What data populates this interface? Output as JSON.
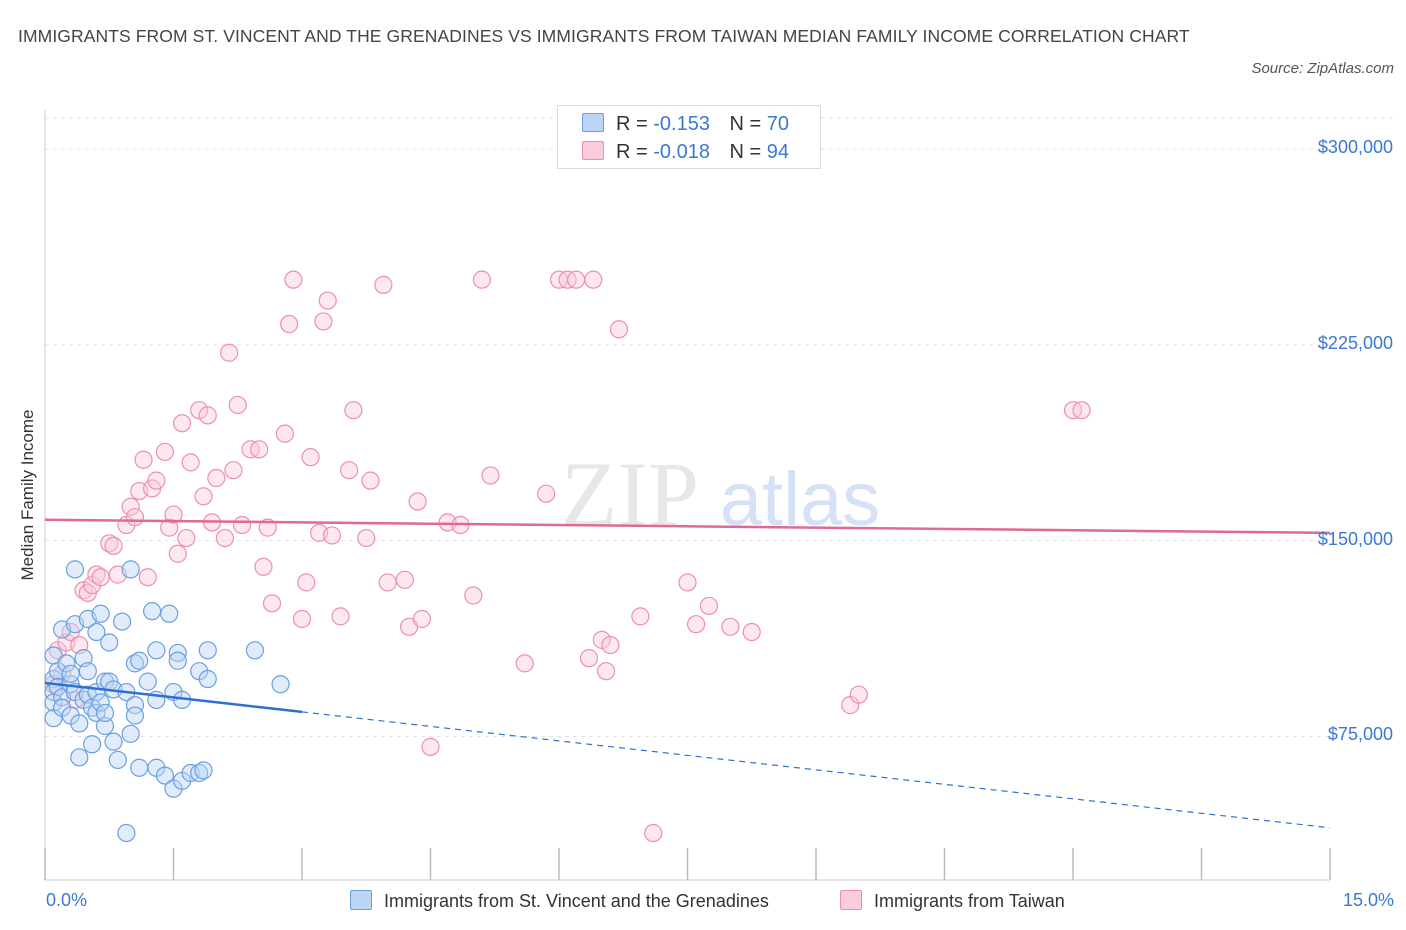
{
  "title": "IMMIGRANTS FROM ST. VINCENT AND THE GRENADINES VS IMMIGRANTS FROM TAIWAN MEDIAN FAMILY INCOME CORRELATION CHART",
  "source": "Source: ZipAtlas.com",
  "watermark": {
    "zip": "ZIP",
    "atlas": "atlas"
  },
  "legend": {
    "rows": [
      {
        "r_label": "R =",
        "r_value": "-0.153",
        "n_label": "N =",
        "n_value": "70"
      },
      {
        "r_label": "R =",
        "r_value": "-0.018",
        "n_label": "N =",
        "n_value": "94"
      }
    ]
  },
  "chart_data": {
    "type": "scatter",
    "title": "IMMIGRANTS FROM ST. VINCENT AND THE GRENADINES VS IMMIGRANTS FROM TAIWAN MEDIAN FAMILY INCOME CORRELATION CHART",
    "xlabel": "",
    "ylabel": "Median Family Income",
    "xlim": [
      0,
      15
    ],
    "ylim": [
      20000,
      315000
    ],
    "x_tick_labels": [
      "0.0%",
      "15.0%"
    ],
    "y_ticks": [
      75000,
      150000,
      225000,
      300000
    ],
    "y_tick_labels": [
      "$75,000",
      "$150,000",
      "$225,000",
      "$300,000"
    ],
    "grid": true,
    "legend_position": "top-center",
    "colors": {
      "blue": "#6a9fe0",
      "blue_fill": "#bcd4f6",
      "blue_line": "#2f6fd0",
      "pink": "#ee8fac",
      "pink_fill": "#f9cdda",
      "pink_line": "#e06a93"
    },
    "series": [
      {
        "name": "Immigrants from St. Vincent and the Grenadines",
        "color": "#6a9fe0",
        "points": [
          [
            0.1,
            106000
          ],
          [
            0.1,
            97000
          ],
          [
            0.1,
            92000
          ],
          [
            0.1,
            88000
          ],
          [
            0.1,
            82000
          ],
          [
            0.15,
            100000
          ],
          [
            0.15,
            94000
          ],
          [
            0.2,
            116000
          ],
          [
            0.2,
            90000
          ],
          [
            0.2,
            86000
          ],
          [
            0.25,
            103000
          ],
          [
            0.3,
            95000
          ],
          [
            0.3,
            99000
          ],
          [
            0.3,
            83000
          ],
          [
            0.35,
            139000
          ],
          [
            0.35,
            118000
          ],
          [
            0.35,
            92000
          ],
          [
            0.4,
            80000
          ],
          [
            0.4,
            67000
          ],
          [
            0.45,
            105000
          ],
          [
            0.45,
            89000
          ],
          [
            0.5,
            120000
          ],
          [
            0.5,
            100000
          ],
          [
            0.5,
            91000
          ],
          [
            0.55,
            86000
          ],
          [
            0.55,
            72000
          ],
          [
            0.6,
            115000
          ],
          [
            0.6,
            92000
          ],
          [
            0.6,
            84000
          ],
          [
            0.65,
            122000
          ],
          [
            0.65,
            88000
          ],
          [
            0.7,
            79000
          ],
          [
            0.7,
            84000
          ],
          [
            0.7,
            96000
          ],
          [
            0.75,
            111000
          ],
          [
            0.75,
            96000
          ],
          [
            0.8,
            93000
          ],
          [
            0.8,
            73000
          ],
          [
            0.85,
            66000
          ],
          [
            0.9,
            119000
          ],
          [
            0.95,
            38000
          ],
          [
            0.95,
            92000
          ],
          [
            1.0,
            139000
          ],
          [
            1.0,
            76000
          ],
          [
            1.05,
            103000
          ],
          [
            1.05,
            87000
          ],
          [
            1.05,
            83000
          ],
          [
            1.1,
            63000
          ],
          [
            1.1,
            104000
          ],
          [
            1.2,
            96000
          ],
          [
            1.25,
            123000
          ],
          [
            1.3,
            108000
          ],
          [
            1.3,
            63000
          ],
          [
            1.3,
            89000
          ],
          [
            1.4,
            60000
          ],
          [
            1.45,
            122000
          ],
          [
            1.5,
            55000
          ],
          [
            1.5,
            92000
          ],
          [
            1.55,
            107000
          ],
          [
            1.55,
            104000
          ],
          [
            1.6,
            89000
          ],
          [
            1.6,
            58000
          ],
          [
            1.7,
            61000
          ],
          [
            1.8,
            61000
          ],
          [
            1.8,
            100000
          ],
          [
            1.85,
            62000
          ],
          [
            1.9,
            108000
          ],
          [
            1.9,
            97000
          ],
          [
            2.45,
            108000
          ],
          [
            2.75,
            95000
          ]
        ]
      },
      {
        "name": "Immigrants from Taiwan",
        "color": "#ee8fac",
        "points": [
          [
            0.1,
            95000
          ],
          [
            0.15,
            108000
          ],
          [
            0.2,
            99000
          ],
          [
            0.25,
            111000
          ],
          [
            0.3,
            115000
          ],
          [
            0.35,
            89000
          ],
          [
            0.4,
            110000
          ],
          [
            0.45,
            131000
          ],
          [
            0.5,
            130000
          ],
          [
            0.55,
            133000
          ],
          [
            0.6,
            137000
          ],
          [
            0.65,
            136000
          ],
          [
            0.75,
            149000
          ],
          [
            0.8,
            148000
          ],
          [
            0.85,
            137000
          ],
          [
            0.95,
            156000
          ],
          [
            1.0,
            163000
          ],
          [
            1.05,
            159000
          ],
          [
            1.1,
            169000
          ],
          [
            1.15,
            181000
          ],
          [
            1.2,
            136000
          ],
          [
            1.25,
            170000
          ],
          [
            1.3,
            173000
          ],
          [
            1.4,
            184000
          ],
          [
            1.45,
            155000
          ],
          [
            1.5,
            160000
          ],
          [
            1.55,
            145000
          ],
          [
            1.6,
            195000
          ],
          [
            1.65,
            151000
          ],
          [
            1.7,
            180000
          ],
          [
            1.8,
            200000
          ],
          [
            1.85,
            167000
          ],
          [
            1.9,
            198000
          ],
          [
            1.95,
            157000
          ],
          [
            2.0,
            174000
          ],
          [
            2.1,
            151000
          ],
          [
            2.15,
            222000
          ],
          [
            2.2,
            177000
          ],
          [
            2.25,
            202000
          ],
          [
            2.3,
            156000
          ],
          [
            2.4,
            185000
          ],
          [
            2.5,
            185000
          ],
          [
            2.55,
            140000
          ],
          [
            2.6,
            155000
          ],
          [
            2.65,
            126000
          ],
          [
            2.8,
            191000
          ],
          [
            2.85,
            233000
          ],
          [
            2.9,
            250000
          ],
          [
            3.0,
            120000
          ],
          [
            3.05,
            134000
          ],
          [
            3.1,
            182000
          ],
          [
            3.2,
            153000
          ],
          [
            3.25,
            234000
          ],
          [
            3.3,
            242000
          ],
          [
            3.35,
            152000
          ],
          [
            3.45,
            121000
          ],
          [
            3.55,
            177000
          ],
          [
            3.6,
            200000
          ],
          [
            3.75,
            151000
          ],
          [
            3.8,
            173000
          ],
          [
            3.95,
            248000
          ],
          [
            4.0,
            134000
          ],
          [
            4.2,
            135000
          ],
          [
            4.25,
            117000
          ],
          [
            4.35,
            165000
          ],
          [
            4.4,
            120000
          ],
          [
            4.5,
            71000
          ],
          [
            4.7,
            157000
          ],
          [
            4.85,
            156000
          ],
          [
            5.0,
            129000
          ],
          [
            5.1,
            250000
          ],
          [
            5.2,
            175000
          ],
          [
            5.6,
            103000
          ],
          [
            5.85,
            168000
          ],
          [
            6.0,
            250000
          ],
          [
            6.1,
            250000
          ],
          [
            6.2,
            250000
          ],
          [
            6.35,
            105000
          ],
          [
            6.4,
            250000
          ],
          [
            6.5,
            112000
          ],
          [
            6.55,
            100000
          ],
          [
            6.6,
            110000
          ],
          [
            6.7,
            231000
          ],
          [
            6.95,
            121000
          ],
          [
            7.5,
            134000
          ],
          [
            7.6,
            118000
          ],
          [
            7.75,
            125000
          ],
          [
            8.0,
            117000
          ],
          [
            8.25,
            115000
          ],
          [
            9.4,
            87000
          ],
          [
            9.5,
            91000
          ],
          [
            12.0,
            200000
          ],
          [
            12.1,
            200000
          ],
          [
            7.1,
            38000
          ]
        ]
      }
    ],
    "trendlines": [
      {
        "series": "Immigrants from St. Vincent and the Grenadines",
        "x": [
          0,
          15
        ],
        "y": [
          95500,
          40000
        ],
        "solid_until_x": 3.0
      },
      {
        "series": "Immigrants from Taiwan",
        "x": [
          0,
          15
        ],
        "y": [
          158000,
          153000
        ]
      }
    ]
  },
  "bottom_legend": [
    {
      "label": "Immigrants from St. Vincent and the Grenadines"
    },
    {
      "label": "Immigrants from Taiwan"
    }
  ]
}
